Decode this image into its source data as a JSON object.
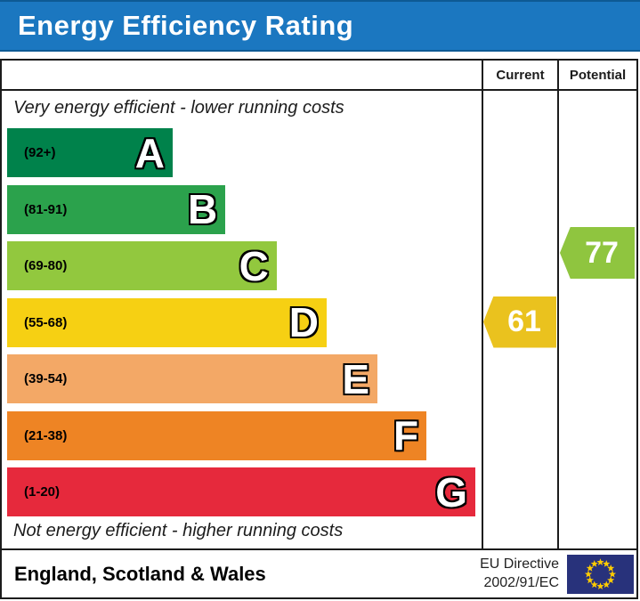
{
  "title": "Energy Efficiency Rating",
  "columns": {
    "current": "Current",
    "potential": "Potential"
  },
  "captions": {
    "top": "Very energy efficient - lower running costs",
    "bottom": "Not energy efficient - higher running costs"
  },
  "chart_data": {
    "type": "bar",
    "title": "Energy Efficiency Rating",
    "bands": [
      {
        "letter": "A",
        "range": "(92+)",
        "min": 92,
        "max": 100,
        "color": "#00824b",
        "width_pct": 34.5
      },
      {
        "letter": "B",
        "range": "(81-91)",
        "min": 81,
        "max": 91,
        "color": "#2ba24c",
        "width_pct": 45.5
      },
      {
        "letter": "C",
        "range": "(69-80)",
        "min": 69,
        "max": 80,
        "color": "#92c83e",
        "width_pct": 56.2
      },
      {
        "letter": "D",
        "range": "(55-68)",
        "min": 55,
        "max": 68,
        "color": "#f6d013",
        "width_pct": 66.6
      },
      {
        "letter": "E",
        "range": "(39-54)",
        "min": 39,
        "max": 54,
        "color": "#f3a866",
        "width_pct": 77.2
      },
      {
        "letter": "F",
        "range": "(21-38)",
        "min": 21,
        "max": 38,
        "color": "#ee8424",
        "width_pct": 87.4
      },
      {
        "letter": "G",
        "range": "(1-20)",
        "min": 1,
        "max": 20,
        "color": "#e6293c",
        "width_pct": 97.6
      }
    ],
    "current": {
      "value": 61,
      "band": "D",
      "color": "#eac21e"
    },
    "potential": {
      "value": 77,
      "band": "C",
      "color": "#8fc53f"
    }
  },
  "footer": {
    "region": "England, Scotland & Wales",
    "directive_line1": "EU Directive",
    "directive_line2": "2002/91/EC",
    "flag": {
      "background": "#28327b",
      "star_color": "#ffcc00",
      "star_count": 12
    }
  },
  "colors": {
    "title_bar": "#1b77c0",
    "border": "#1c1c1c"
  }
}
